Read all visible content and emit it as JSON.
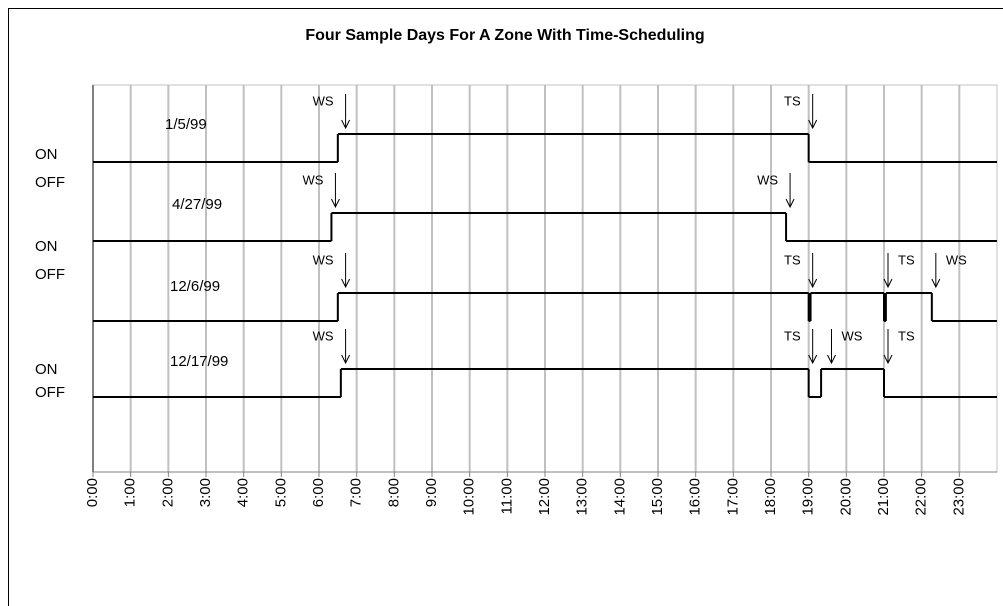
{
  "chart_data": {
    "type": "step",
    "title": "Four Sample Days For A Zone With Time-Scheduling",
    "xlim": [
      0,
      24
    ],
    "xticks": [
      {
        "value": 0,
        "label": "0:00"
      },
      {
        "value": 1,
        "label": "1:00"
      },
      {
        "value": 2,
        "label": "2:00"
      },
      {
        "value": 3,
        "label": "3:00"
      },
      {
        "value": 4,
        "label": "4:00"
      },
      {
        "value": 5,
        "label": "5:00"
      },
      {
        "value": 6,
        "label": "6:00"
      },
      {
        "value": 7,
        "label": "7:00"
      },
      {
        "value": 8,
        "label": "8:00"
      },
      {
        "value": 9,
        "label": "9:00"
      },
      {
        "value": 10,
        "label": "10:00"
      },
      {
        "value": 11,
        "label": "11:00"
      },
      {
        "value": 12,
        "label": "12:00"
      },
      {
        "value": 13,
        "label": "13:00"
      },
      {
        "value": 14,
        "label": "14:00"
      },
      {
        "value": 15,
        "label": "15:00"
      },
      {
        "value": 16,
        "label": "16:00"
      },
      {
        "value": 17,
        "label": "17:00"
      },
      {
        "value": 18,
        "label": "18:00"
      },
      {
        "value": 19,
        "label": "19:00"
      },
      {
        "value": 20,
        "label": "20:00"
      },
      {
        "value": 21,
        "label": "21:00"
      },
      {
        "value": 22,
        "label": "22:00"
      },
      {
        "value": 23,
        "label": "23:00"
      }
    ],
    "grid": true,
    "state_labels": [
      {
        "on": "ON",
        "off": "OFF"
      },
      {
        "on": "ON",
        "off": "OFF"
      },
      {
        "on": "ON",
        "off": "OFF"
      }
    ],
    "series": [
      {
        "name": "1/5/99",
        "color": "#000000",
        "x": [
          0,
          6.5,
          19
        ],
        "values": [
          0,
          1,
          0
        ],
        "events": [
          {
            "label": "WS",
            "x": 6.6,
            "side": "left"
          },
          {
            "label": "TS",
            "x": 19,
            "side": "left"
          }
        ]
      },
      {
        "name": "4/27/99",
        "color": "#000000",
        "x": [
          0,
          6.33,
          18.4
        ],
        "values": [
          0,
          1,
          0
        ],
        "events": [
          {
            "label": "WS",
            "x": 6.33,
            "side": "left"
          },
          {
            "label": "WS",
            "x": 18.4,
            "side": "left"
          }
        ]
      },
      {
        "name": "12/6/99",
        "color": "#000000",
        "x": [
          0,
          6.5,
          19,
          19.05,
          21,
          21.05,
          22.27
        ],
        "values": [
          0,
          1,
          0,
          1,
          0,
          1,
          0
        ],
        "events": [
          {
            "label": "WS",
            "x": 6.6,
            "side": "left"
          },
          {
            "label": "TS",
            "x": 19,
            "side": "left"
          },
          {
            "label": "TS",
            "x": 21,
            "side": "right"
          },
          {
            "label": "WS",
            "x": 22.27,
            "side": "right"
          }
        ]
      },
      {
        "name": "12/17/99",
        "color": "#000000",
        "x": [
          0,
          6.58,
          19,
          19.33,
          21
        ],
        "values": [
          0,
          1,
          0,
          1,
          0
        ],
        "events": [
          {
            "label": "WS",
            "x": 6.6,
            "side": "left"
          },
          {
            "label": "TS",
            "x": 19,
            "side": "left"
          },
          {
            "label": "WS",
            "x": 19.5,
            "side": "right"
          },
          {
            "label": "TS",
            "x": 21,
            "side": "right"
          }
        ]
      }
    ]
  }
}
